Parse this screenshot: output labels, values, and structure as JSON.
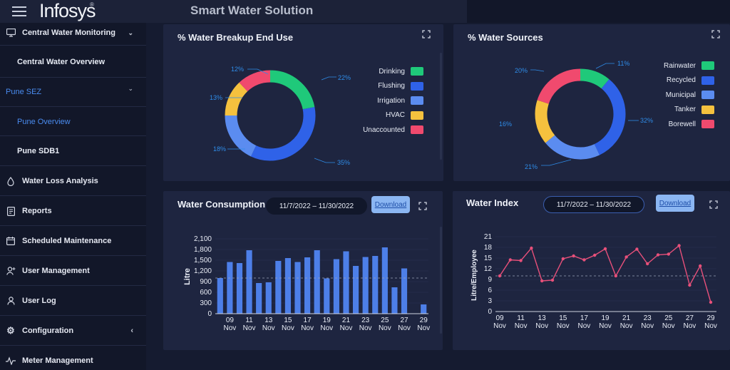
{
  "header": {
    "logo_text": "Infosys",
    "logo_mark": "®",
    "app_title": "Smart Water Solution"
  },
  "sidebar": {
    "items": [
      {
        "label": "Central Water Monitoring",
        "icon": "monitor-icon"
      },
      {
        "label": "Central Water Overview"
      },
      {
        "label": "Pune SEZ"
      },
      {
        "label": "Pune Overview"
      },
      {
        "label": "Pune SDB1"
      },
      {
        "label": "Water Loss Analysis",
        "icon": "water-drop-icon"
      },
      {
        "label": "Reports",
        "icon": "report-icon"
      },
      {
        "label": "Scheduled Maintenance",
        "icon": "calendar-icon"
      },
      {
        "label": "User Management",
        "icon": "add-user-icon"
      },
      {
        "label": "User Log",
        "icon": "user-icon"
      },
      {
        "label": "Configuration",
        "icon": "gear-icon"
      },
      {
        "label": "Meter Management",
        "icon": "pulse-icon"
      }
    ]
  },
  "panels": {
    "breakup": {
      "title": "% Water Breakup End Use",
      "legend": [
        "Drinking",
        "Flushing",
        "Irrigation",
        "HVAC",
        "Unaccounted"
      ]
    },
    "sources": {
      "title": "% Water Sources",
      "legend": [
        "Rainwater",
        "Recycled",
        "Municipal",
        "Tanker",
        "Borewell"
      ]
    },
    "consumption": {
      "title": "Water Consumption",
      "date_range": "11/7/2022 – 11/30/2022",
      "download_label": "Download"
    },
    "index": {
      "title": "Water Index",
      "date_range": "11/7/2022 – 11/30/2022",
      "download_label": "Download"
    }
  },
  "colors": {
    "green": "#1fc97a",
    "blue": "#2f62e8",
    "light_blue": "#5b8cf0",
    "yellow": "#f5c13e",
    "pink": "#f04a6e",
    "bar": "#4d7fe8",
    "line": "#e8507a"
  },
  "chart_data": [
    {
      "type": "pie",
      "title": "% Water Breakup End Use",
      "categories": [
        "Drinking",
        "Flushing",
        "Irrigation",
        "HVAC",
        "Unaccounted"
      ],
      "values": [
        22,
        35,
        18,
        13,
        12
      ],
      "labels": [
        "22%",
        "35%",
        "18%",
        "13%",
        "12%"
      ],
      "legend": "right"
    },
    {
      "type": "pie",
      "title": "% Water Sources",
      "categories": [
        "Rainwater",
        "Recycled",
        "Municipal",
        "Tanker",
        "Borewell"
      ],
      "values": [
        11,
        32,
        21,
        16,
        20
      ],
      "labels": [
        "11%",
        "32%",
        "21%",
        "16%",
        "20%"
      ],
      "legend": "right"
    },
    {
      "type": "bar",
      "title": "Water Consumption",
      "ylabel": "Litre",
      "ylim": [
        0,
        2100
      ],
      "yticks": [
        "0",
        "300",
        "600",
        "900",
        "1,200",
        "1,500",
        "1,800",
        "2,100"
      ],
      "xticks": [
        "09",
        "11",
        "13",
        "15",
        "17",
        "19",
        "21",
        "23",
        "25",
        "27",
        "29"
      ],
      "xtick_sub": "Nov",
      "reference_line": 1000,
      "x": [
        "08",
        "09",
        "10",
        "11",
        "12",
        "13",
        "14",
        "15",
        "16",
        "17",
        "18",
        "19",
        "20",
        "21",
        "22",
        "23",
        "24",
        "25",
        "26",
        "27",
        "28",
        "29"
      ],
      "values": [
        1000,
        1450,
        1420,
        1780,
        860,
        880,
        1480,
        1560,
        1450,
        1580,
        1780,
        990,
        1530,
        1750,
        1340,
        1590,
        1620,
        1860,
        740,
        1270,
        0,
        260
      ]
    },
    {
      "type": "line",
      "title": "Water Index",
      "ylabel": "Litre/Employee",
      "ylim": [
        0,
        21
      ],
      "yticks": [
        "0",
        "3",
        "6",
        "9",
        "12",
        "15",
        "18",
        "21"
      ],
      "xticks": [
        "09",
        "11",
        "13",
        "15",
        "17",
        "19",
        "21",
        "23",
        "25",
        "27",
        "29"
      ],
      "xtick_sub": "Nov",
      "reference_line": 10,
      "values": [
        10,
        14.5,
        14.3,
        17.8,
        8.6,
        8.8,
        14.8,
        15.6,
        14.5,
        15.8,
        17.6,
        10,
        15.3,
        17.5,
        13.4,
        15.9,
        16.1,
        18.5,
        7.4,
        12.8,
        2.6
      ]
    }
  ]
}
